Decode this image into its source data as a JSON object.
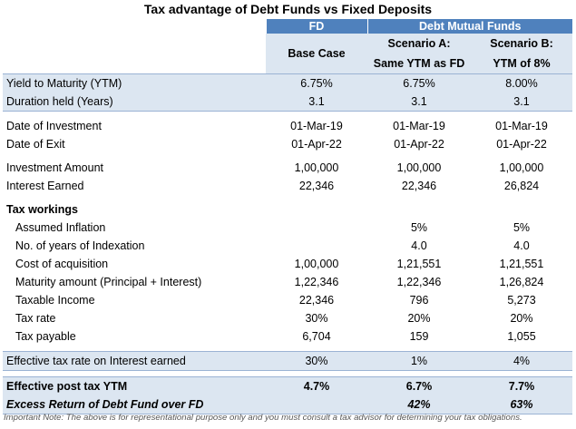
{
  "title": "Tax advantage of Debt Funds vs Fixed Deposits",
  "header": {
    "fd": "FD",
    "debt": "Debt Mutual Funds"
  },
  "subheader": {
    "base": "Base Case",
    "a1": "Scenario A:",
    "a2": "Same YTM as FD",
    "b1": "Scenario B:",
    "b2": "YTM of 8%"
  },
  "rows": {
    "ytm": {
      "label": "Yield to Maturity (YTM)",
      "fd": "6.75%",
      "a": "6.75%",
      "b": "8.00%"
    },
    "duration": {
      "label": "Duration held (Years)",
      "fd": "3.1",
      "a": "3.1",
      "b": "3.1"
    },
    "doi": {
      "label": "Date of Investment",
      "fd": "01-Mar-19",
      "a": "01-Mar-19",
      "b": "01-Mar-19"
    },
    "doe": {
      "label": "Date of Exit",
      "fd": "01-Apr-22",
      "a": "01-Apr-22",
      "b": "01-Apr-22"
    },
    "invest": {
      "label": "Investment Amount",
      "fd": "1,00,000",
      "a": "1,00,000",
      "b": "1,00,000"
    },
    "interest": {
      "label": "Interest Earned",
      "fd": "22,346",
      "a": "22,346",
      "b": "26,824"
    },
    "taxw": {
      "label": "Tax workings"
    },
    "inflation": {
      "label": "Assumed Inflation",
      "fd": "",
      "a": "5%",
      "b": "5%"
    },
    "indexyears": {
      "label": "No. of years of Indexation",
      "fd": "",
      "a": "4.0",
      "b": "4.0"
    },
    "cost": {
      "label": "Cost of acquisition",
      "fd": "1,00,000",
      "a": "1,21,551",
      "b": "1,21,551"
    },
    "maturity": {
      "label": "Maturity amount (Principal + Interest)",
      "fd": "1,22,346",
      "a": "1,22,346",
      "b": "1,26,824"
    },
    "taxable": {
      "label": "Taxable Income",
      "fd": "22,346",
      "a": "796",
      "b": "5,273"
    },
    "taxrate": {
      "label": "Tax rate",
      "fd": "30%",
      "a": "20%",
      "b": "20%"
    },
    "taxpay": {
      "label": "Tax payable",
      "fd": "6,704",
      "a": "159",
      "b": "1,055"
    },
    "efftax": {
      "label": "Effective tax rate on Interest earned",
      "fd": "30%",
      "a": "1%",
      "b": "4%"
    },
    "postytm": {
      "label": "Effective post tax YTM",
      "fd": "4.7%",
      "a": "6.7%",
      "b": "7.7%"
    },
    "excess": {
      "label": "Excess Return of Debt Fund over FD",
      "fd": "",
      "a": "42%",
      "b": "63%"
    }
  },
  "note": "Important Note: The above is for representational purpose only and you must consult a tax advisor for determining your tax obligations."
}
